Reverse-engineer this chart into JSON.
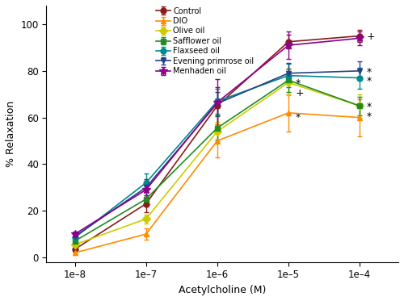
{
  "x_values": [
    1e-08,
    1e-07,
    1e-06,
    1e-05,
    0.0001
  ],
  "series": {
    "Control": {
      "y": [
        3.5,
        23.0,
        65.0,
        92.5,
        95.0
      ],
      "yerr": [
        1.0,
        3.5,
        8.0,
        3.0,
        2.5
      ],
      "color": "#8B1A1A",
      "marker": "o",
      "marker_size": 5
    },
    "DIO": {
      "y": [
        2.0,
        10.0,
        50.0,
        62.0,
        60.0
      ],
      "yerr": [
        0.8,
        2.5,
        7.0,
        8.0,
        8.0
      ],
      "color": "#FF8C00",
      "marker": "^",
      "marker_size": 5
    },
    "Olive oil": {
      "y": [
        5.5,
        16.5,
        54.0,
        75.0,
        65.0
      ],
      "yerr": [
        1.2,
        2.0,
        4.0,
        5.5,
        5.0
      ],
      "color": "#CCCC00",
      "marker": "D",
      "marker_size": 5
    },
    "Safflower oil": {
      "y": [
        7.0,
        25.0,
        55.5,
        76.0,
        65.0
      ],
      "yerr": [
        1.5,
        3.0,
        5.0,
        5.0,
        4.0
      ],
      "color": "#228B22",
      "marker": "s",
      "marker_size": 5
    },
    "Flaxseed oil": {
      "y": [
        8.5,
        32.0,
        67.0,
        78.0,
        77.0
      ],
      "yerr": [
        1.5,
        4.0,
        5.5,
        5.0,
        4.5
      ],
      "color": "#008B8B",
      "marker": "o",
      "marker_size": 5
    },
    "Evening primrose oil": {
      "y": [
        9.0,
        30.0,
        66.0,
        79.0,
        80.0
      ],
      "yerr": [
        1.2,
        3.5,
        5.0,
        4.5,
        4.0
      ],
      "color": "#27408B",
      "marker": "v",
      "marker_size": 5
    },
    "Menhaden oil": {
      "y": [
        10.0,
        29.0,
        66.5,
        91.0,
        94.0
      ],
      "yerr": [
        1.0,
        4.0,
        10.0,
        6.0,
        3.0
      ],
      "color": "#8B008B",
      "marker": "*",
      "marker_size": 7
    }
  },
  "xlabel": "Acetylcholine (M)",
  "ylabel": "% Relaxation",
  "ylim": [
    -2,
    108
  ],
  "yticks": [
    0,
    20,
    40,
    60,
    80,
    100
  ],
  "background_color": "#ffffff",
  "figsize": [
    5.0,
    3.73
  ],
  "dpi": 100,
  "ann_1e5": [
    {
      "y": 70.5,
      "text": "+"
    },
    {
      "y": 60.0,
      "text": "*"
    },
    {
      "y": 74.5,
      "text": "*"
    }
  ],
  "ann_1e4": [
    {
      "y": 94.5,
      "text": "+"
    },
    {
      "y": 79.5,
      "text": "*"
    },
    {
      "y": 75.5,
      "text": "*"
    },
    {
      "y": 64.5,
      "text": "*"
    },
    {
      "y": 60.5,
      "text": "*"
    }
  ]
}
